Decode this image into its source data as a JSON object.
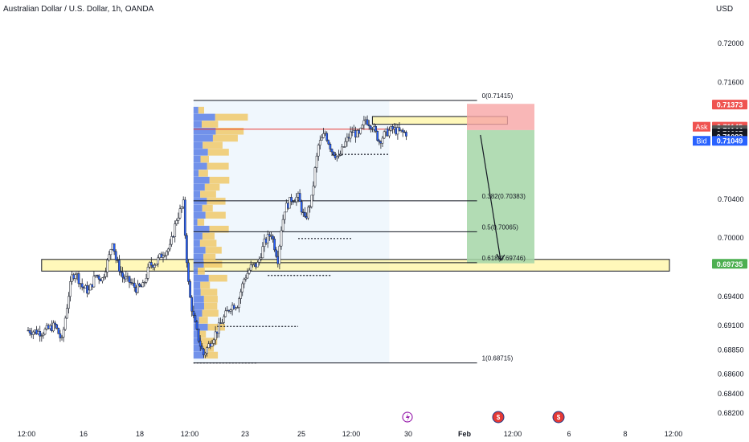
{
  "header": {
    "symbol_title": "Australian Dollar / U.S. Dollar, 1h, OANDA",
    "currency": "USD"
  },
  "chart_data": {
    "type": "candlestick",
    "title": "Australian Dollar / U.S. Dollar, 1h, OANDA",
    "ylabel": "USD",
    "ylim": [
      0.6815,
      0.7225
    ],
    "y_ticks": [
      "0.72000",
      "0.71600",
      "0.70400",
      "0.70000",
      "0.69400",
      "0.69100",
      "0.68850",
      "0.68600",
      "0.68400",
      "0.68200"
    ],
    "x_ticks": [
      "12:00",
      "16",
      "18",
      "12:00",
      "23",
      "25",
      "12:00",
      "30",
      "Feb",
      "12:00",
      "6",
      "8",
      "12:00"
    ],
    "x_tick_index": [
      0,
      8,
      16,
      24,
      32,
      40,
      48,
      56,
      64,
      72,
      80,
      88,
      96
    ],
    "x_count": 100,
    "price_path": [
      [
        0,
        0.6905
      ],
      [
        2,
        0.6903
      ],
      [
        4,
        0.691
      ],
      [
        5,
        0.6894
      ],
      [
        6,
        0.6942
      ],
      [
        6.5,
        0.696
      ],
      [
        7,
        0.6965
      ],
      [
        8,
        0.695
      ],
      [
        9,
        0.6945
      ],
      [
        10,
        0.6962
      ],
      [
        11,
        0.6958
      ],
      [
        12,
        0.6981
      ],
      [
        12.5,
        0.6998
      ],
      [
        13,
        0.6978
      ],
      [
        14,
        0.696
      ],
      [
        15,
        0.6955
      ],
      [
        16,
        0.6948
      ],
      [
        17,
        0.695
      ],
      [
        18,
        0.6972
      ],
      [
        19,
        0.6975
      ],
      [
        20,
        0.6985
      ],
      [
        21,
        0.699
      ],
      [
        22,
        0.702
      ],
      [
        23,
        0.7035
      ],
      [
        23.3,
        0.6998
      ],
      [
        23.8,
        0.6948
      ],
      [
        24,
        0.6938
      ],
      [
        24.5,
        0.6918
      ],
      [
        25,
        0.6903
      ],
      [
        25.5,
        0.689
      ],
      [
        26,
        0.688
      ],
      [
        27,
        0.6893
      ],
      [
        28,
        0.6905
      ],
      [
        29,
        0.6918
      ],
      [
        30,
        0.693
      ],
      [
        31,
        0.6932
      ],
      [
        32,
        0.6958
      ],
      [
        33,
        0.697
      ],
      [
        34,
        0.6973
      ],
      [
        35,
        0.6995
      ],
      [
        36,
        0.7005
      ],
      [
        37,
        0.6978
      ],
      [
        37.5,
        0.701
      ],
      [
        38,
        0.703
      ],
      [
        39,
        0.704
      ],
      [
        40,
        0.7042
      ],
      [
        41,
        0.7018
      ],
      [
        42,
        0.704
      ],
      [
        42.5,
        0.707
      ],
      [
        43,
        0.7095
      ],
      [
        44,
        0.7108
      ],
      [
        45,
        0.709
      ],
      [
        46,
        0.7082
      ],
      [
        47,
        0.7098
      ],
      [
        48,
        0.711
      ],
      [
        49,
        0.7105
      ],
      [
        50,
        0.7122
      ],
      [
        51,
        0.7115
      ],
      [
        52,
        0.71
      ],
      [
        53,
        0.7108
      ],
      [
        54,
        0.7112
      ],
      [
        55,
        0.7109
      ],
      [
        56,
        0.7108
      ]
    ],
    "horizontal_lines": [
      {
        "label": "0(0.71415)",
        "y": 0.71415
      },
      {
        "label": "0.382(0.70383)",
        "y": 0.70383
      },
      {
        "label": "0.5(0.70065)",
        "y": 0.70065
      },
      {
        "label": "0.618(0.69746)",
        "y": 0.69746
      },
      {
        "label": "1(0.68715)",
        "y": 0.68715
      }
    ],
    "price_labels": [
      {
        "value": "0.71373",
        "bg": "#ef5350",
        "fg": "#ffffff",
        "y": 0.71373
      },
      {
        "value": "0.71145",
        "bg": "#ef5350",
        "fg": "#ffffff",
        "y": 0.71145,
        "tag": "Ask"
      },
      {
        "value": "0.71144",
        "bg": "#555555",
        "fg": "#ffffff",
        "y": 0.7111
      },
      {
        "value": "0.71097",
        "bg": "#131722",
        "fg": "#ffffff",
        "y": 0.71075
      },
      {
        "value": "0.71083",
        "bg": "#131722",
        "fg": "#ffffff",
        "y": 0.71045
      },
      {
        "value": "0.71049",
        "bg": "#2962ff",
        "fg": "#ffffff",
        "y": 0.71,
        "tag": "Bid"
      },
      {
        "value": "0.69735",
        "bg": "#4caf50",
        "fg": "#ffffff",
        "y": 0.69735
      }
    ],
    "zones": [
      {
        "x0": 2,
        "x1": 95,
        "y0": 0.6978,
        "y1": 0.6966
      },
      {
        "x0": 51,
        "x1": 71,
        "y0": 0.7125,
        "y1": 0.7117
      }
    ],
    "position": {
      "x0": 65,
      "x1": 75,
      "entry": 0.7111,
      "stop": 0.7138,
      "target": 0.6974
    },
    "currency_icons": [
      "$",
      "$"
    ],
    "event_icon": "lightning-icon",
    "colors": {
      "up": "#26a69a",
      "down": "#ef5350",
      "wick": "#1e222d",
      "line": "#2962ff",
      "zone": "#fff59d",
      "stop": "#f8a5a5",
      "target": "#a5d6a7"
    }
  }
}
